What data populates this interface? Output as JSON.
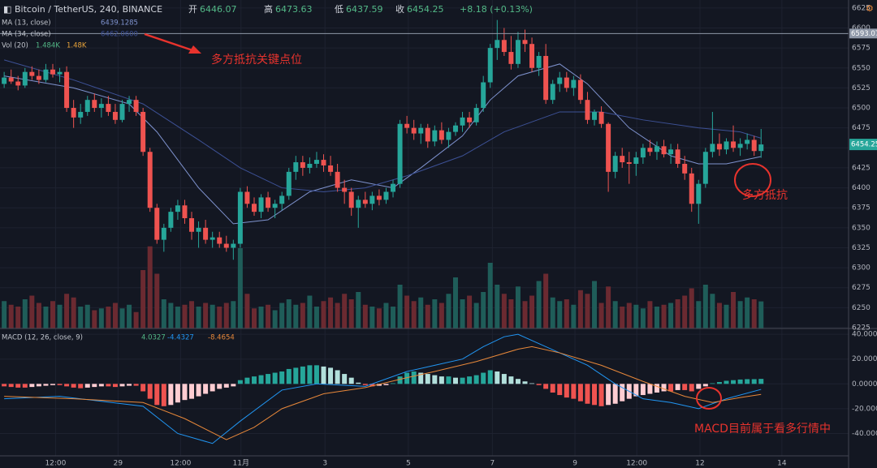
{
  "chart_data": {
    "type": "candlestick",
    "title": "Bitcoin / TetherUS, 240, BINANCE",
    "header": {
      "open": "开",
      "high": "高",
      "low": "低",
      "close": "收",
      "change": "+8.18 (+0.13%)"
    },
    "up_color": "#26a69a",
    "down_color": "#ef5350",
    "volume_up_color": "#1f5d59",
    "volume_down_color": "#6b2a31",
    "grid": true,
    "xlim": [
      -0.6,
      121.6
    ],
    "xticks": [
      {
        "value": 7.4,
        "label": "12:00"
      },
      {
        "value": 16.4,
        "label": "29"
      },
      {
        "value": 25.4,
        "label": "12:00"
      },
      {
        "value": 34.1,
        "label": "11月"
      },
      {
        "value": 46.2,
        "label": "3"
      },
      {
        "value": 58.2,
        "label": "5"
      },
      {
        "value": 70.3,
        "label": "7"
      },
      {
        "value": 82.2,
        "label": "9"
      },
      {
        "value": 91.1,
        "label": "12:00"
      },
      {
        "value": 100.2,
        "label": "12"
      },
      {
        "value": 112.0,
        "label": "14"
      }
    ],
    "ylim": [
      6224,
      6635
    ],
    "yticks": [
      6225,
      6250,
      6275,
      6300,
      6325,
      6350,
      6375,
      6400,
      6425,
      6450,
      6475,
      6500,
      6525,
      6550,
      6575,
      6600,
      6625
    ],
    "hline": {
      "value": 6593.07,
      "label": "6593.07",
      "color": "#8f98a8"
    },
    "ohlc": [
      [
        6530,
        6545,
        6525,
        6538
      ],
      [
        6538,
        6548,
        6530,
        6533
      ],
      [
        6533,
        6540,
        6522,
        6528
      ],
      [
        6528,
        6550,
        6525,
        6545
      ],
      [
        6545,
        6552,
        6535,
        6540
      ],
      [
        6540,
        6548,
        6530,
        6535
      ],
      [
        6535,
        6555,
        6532,
        6548
      ],
      [
        6548,
        6555,
        6538,
        6542
      ],
      [
        6542,
        6550,
        6532,
        6545
      ],
      [
        6545,
        6552,
        6495,
        6500
      ],
      [
        6500,
        6510,
        6475,
        6488
      ],
      [
        6488,
        6505,
        6480,
        6495
      ],
      [
        6495,
        6515,
        6490,
        6510
      ],
      [
        6510,
        6518,
        6495,
        6500
      ],
      [
        6500,
        6512,
        6488,
        6505
      ],
      [
        6505,
        6515,
        6490,
        6495
      ],
      [
        6495,
        6505,
        6480,
        6485
      ],
      [
        6485,
        6510,
        6482,
        6505
      ],
      [
        6505,
        6515,
        6495,
        6510
      ],
      [
        6510,
        6515,
        6490,
        6495
      ],
      [
        6495,
        6500,
        6440,
        6445
      ],
      [
        6445,
        6450,
        6370,
        6375
      ],
      [
        6375,
        6380,
        6330,
        6335
      ],
      [
        6335,
        6355,
        6320,
        6350
      ],
      [
        6350,
        6375,
        6345,
        6370
      ],
      [
        6370,
        6385,
        6360,
        6378
      ],
      [
        6378,
        6385,
        6355,
        6362
      ],
      [
        6362,
        6370,
        6335,
        6345
      ],
      [
        6345,
        6358,
        6325,
        6350
      ],
      [
        6350,
        6360,
        6330,
        6335
      ],
      [
        6335,
        6345,
        6325,
        6338
      ],
      [
        6338,
        6345,
        6325,
        6330
      ],
      [
        6330,
        6340,
        6320,
        6325
      ],
      [
        6325,
        6335,
        6310,
        6330
      ],
      [
        6330,
        6400,
        6325,
        6395
      ],
      [
        6395,
        6402,
        6375,
        6380
      ],
      [
        6380,
        6388,
        6365,
        6370
      ],
      [
        6370,
        6392,
        6362,
        6388
      ],
      [
        6388,
        6395,
        6370,
        6375
      ],
      [
        6375,
        6385,
        6362,
        6380
      ],
      [
        6380,
        6395,
        6372,
        6390
      ],
      [
        6390,
        6425,
        6385,
        6420
      ],
      [
        6420,
        6440,
        6410,
        6432
      ],
      [
        6432,
        6440,
        6415,
        6425
      ],
      [
        6425,
        6438,
        6418,
        6430
      ],
      [
        6430,
        6445,
        6425,
        6435
      ],
      [
        6435,
        6442,
        6420,
        6428
      ],
      [
        6428,
        6440,
        6415,
        6420
      ],
      [
        6420,
        6430,
        6395,
        6400
      ],
      [
        6400,
        6410,
        6380,
        6395
      ],
      [
        6395,
        6400,
        6365,
        6375
      ],
      [
        6375,
        6390,
        6350,
        6385
      ],
      [
        6385,
        6395,
        6375,
        6380
      ],
      [
        6380,
        6395,
        6372,
        6390
      ],
      [
        6390,
        6398,
        6378,
        6385
      ],
      [
        6385,
        6400,
        6380,
        6395
      ],
      [
        6395,
        6410,
        6388,
        6405
      ],
      [
        6405,
        6485,
        6400,
        6480
      ],
      [
        6480,
        6490,
        6468,
        6475
      ],
      [
        6475,
        6485,
        6460,
        6468
      ],
      [
        6468,
        6480,
        6455,
        6475
      ],
      [
        6475,
        6480,
        6450,
        6458
      ],
      [
        6458,
        6478,
        6452,
        6472
      ],
      [
        6472,
        6482,
        6455,
        6460
      ],
      [
        6460,
        6475,
        6450,
        6470
      ],
      [
        6470,
        6482,
        6465,
        6478
      ],
      [
        6478,
        6495,
        6470,
        6488
      ],
      [
        6488,
        6495,
        6475,
        6482
      ],
      [
        6482,
        6505,
        6478,
        6500
      ],
      [
        6500,
        6540,
        6495,
        6532
      ],
      [
        6532,
        6580,
        6525,
        6575
      ],
      [
        6575,
        6610,
        6560,
        6585
      ],
      [
        6585,
        6600,
        6565,
        6570
      ],
      [
        6570,
        6590,
        6548,
        6555
      ],
      [
        6555,
        6595,
        6550,
        6585
      ],
      [
        6585,
        6598,
        6570,
        6580
      ],
      [
        6580,
        6588,
        6545,
        6550
      ],
      [
        6550,
        6570,
        6540,
        6565
      ],
      [
        6565,
        6580,
        6505,
        6510
      ],
      [
        6510,
        6535,
        6505,
        6530
      ],
      [
        6530,
        6545,
        6520,
        6538
      ],
      [
        6538,
        6545,
        6520,
        6525
      ],
      [
        6525,
        6540,
        6515,
        6535
      ],
      [
        6535,
        6542,
        6505,
        6510
      ],
      [
        6510,
        6520,
        6480,
        6485
      ],
      [
        6485,
        6498,
        6478,
        6495
      ],
      [
        6495,
        6502,
        6475,
        6480
      ],
      [
        6480,
        6482,
        6395,
        6420
      ],
      [
        6420,
        6445,
        6412,
        6440
      ],
      [
        6440,
        6450,
        6425,
        6432
      ],
      [
        6432,
        6445,
        6405,
        6430
      ],
      [
        6430,
        6445,
        6415,
        6438
      ],
      [
        6438,
        6455,
        6430,
        6450
      ],
      [
        6450,
        6460,
        6440,
        6445
      ],
      [
        6445,
        6458,
        6435,
        6452
      ],
      [
        6452,
        6460,
        6438,
        6442
      ],
      [
        6442,
        6455,
        6430,
        6448
      ],
      [
        6448,
        6455,
        6425,
        6430
      ],
      [
        6430,
        6440,
        6410,
        6418
      ],
      [
        6418,
        6425,
        6370,
        6380
      ],
      [
        6380,
        6410,
        6355,
        6405
      ],
      [
        6405,
        6450,
        6400,
        6445
      ],
      [
        6445,
        6495,
        6438,
        6455
      ],
      [
        6455,
        6468,
        6440,
        6448
      ],
      [
        6448,
        6462,
        6442,
        6458
      ],
      [
        6458,
        6478,
        6445,
        6450
      ],
      [
        6450,
        6462,
        6440,
        6455
      ],
      [
        6455,
        6468,
        6448,
        6460
      ],
      [
        6460,
        6465,
        6440,
        6446
      ],
      [
        6446.07,
        6473.63,
        6437.59,
        6454.25
      ]
    ],
    "ma_lines": [
      {
        "name": "MA (13, close)",
        "color": "#7f93cf",
        "x": [
          0,
          10,
          18,
          22,
          28,
          33,
          38,
          44,
          50,
          56,
          60,
          66,
          70,
          74,
          80,
          84,
          90,
          96,
          100,
          104,
          109
        ],
        "values": [
          6540,
          6525,
          6505,
          6470,
          6400,
          6355,
          6360,
          6395,
          6410,
          6400,
          6425,
          6465,
          6510,
          6540,
          6555,
          6530,
          6475,
          6440,
          6430,
          6430,
          6439.1285
        ]
      },
      {
        "name": "MA (34, close)",
        "color": "#3d5196",
        "x": [
          0,
          10,
          20,
          28,
          34,
          40,
          46,
          52,
          58,
          66,
          72,
          80,
          86,
          92,
          100,
          106,
          109
        ],
        "values": [
          6560,
          6535,
          6505,
          6460,
          6425,
          6400,
          6395,
          6400,
          6415,
          6440,
          6470,
          6495,
          6495,
          6485,
          6475,
          6470,
          6462.06
        ],
        "value_label": "6462.0600"
      }
    ],
    "volume_name": "Vol (20)",
    "volume_ylim": [
      0,
      18
    ],
    "volume": [
      1.5,
      1.3,
      1.2,
      1.6,
      1.8,
      1.4,
      1.2,
      1.5,
      1.3,
      1.9,
      1.7,
      1.2,
      1.3,
      1.0,
      1.1,
      1.2,
      1.4,
      1.1,
      1.3,
      0.9,
      3.2,
      4.5,
      3.0,
      1.6,
      1.4,
      1.2,
      1.3,
      1.5,
      1.2,
      1.4,
      1.3,
      1.2,
      1.4,
      1.5,
      4.4,
      1.9,
      1.1,
      1.2,
      1.3,
      1.0,
      1.4,
      1.6,
      1.3,
      1.4,
      1.8,
      1.2,
      1.5,
      1.7,
      1.4,
      1.9,
      1.6,
      2.0,
      1.3,
      1.2,
      1.1,
      1.4,
      1.2,
      2.4,
      1.8,
      1.5,
      1.7,
      1.3,
      1.6,
      1.4,
      1.9,
      2.8,
      1.6,
      1.8,
      1.4,
      2.0,
      3.6,
      2.4,
      1.9,
      1.6,
      2.3,
      1.5,
      1.8,
      2.6,
      3.0,
      1.7,
      1.5,
      1.6,
      1.3,
      2.1,
      1.9,
      2.6,
      1.4,
      2.3,
      1.5,
      1.2,
      1.4,
      1.3,
      1.1,
      1.5,
      1.2,
      1.3,
      1.4,
      1.6,
      1.8,
      2.2,
      1.5,
      2.4,
      1.9,
      1.4,
      1.3,
      2.0,
      1.5,
      1.7,
      1.6,
      1.484
    ],
    "volume_value_label": "1.484K",
    "volume_ma": {
      "value": 1.48,
      "label": "1.48K"
    },
    "macd": {
      "name": "MACD (12, 26, close, 9)",
      "ylim": [
        -58,
        44
      ],
      "yticks": [
        {
          "value": 40,
          "label": "40.0000"
        },
        {
          "value": 20,
          "label": "20.0000"
        },
        {
          "value": 0,
          "label": "0.0000"
        },
        {
          "value": -20,
          "label": "-20.0000"
        },
        {
          "value": -40,
          "label": "-40.0000"
        }
      ],
      "hist_colors": {
        "pos_up": "#26a69a",
        "pos_down": "#b2dfdb",
        "neg_down": "#ef5350",
        "neg_up": "#ffcdd2"
      },
      "histogram": [
        -2,
        -2.5,
        -3,
        -3,
        -2.5,
        -2,
        -1.5,
        -1,
        -1,
        -2,
        -3,
        -3.5,
        -3,
        -2.5,
        -2,
        -2,
        -2.5,
        -2,
        -1.5,
        -1.5,
        -6,
        -12,
        -17,
        -18,
        -17,
        -15,
        -13,
        -12,
        -10,
        -8,
        -6,
        -4,
        -3,
        -2,
        3,
        5,
        6,
        7,
        8,
        9,
        10,
        12,
        13,
        14,
        15,
        15,
        14,
        13,
        11,
        8,
        5,
        1,
        -1,
        -2,
        -1.5,
        -1,
        0.5,
        6,
        9,
        10,
        9,
        8,
        7,
        6,
        6,
        5,
        5,
        6,
        7,
        9,
        11,
        10,
        8,
        6,
        4,
        2,
        0.5,
        -1,
        -4,
        -7,
        -9,
        -11,
        -12,
        -14,
        -16,
        -17,
        -18,
        -17,
        -16,
        -14,
        -12,
        -10,
        -9,
        -8,
        -7,
        -6,
        -6,
        -5,
        -5,
        -6,
        -4,
        -2,
        0.5,
        1.5,
        2.5,
        3,
        3.5,
        3.8,
        3.8,
        4.0327
      ],
      "lines": [
        {
          "name": "MACD",
          "color": "#2196f3",
          "x": [
            0,
            8,
            20,
            25,
            30,
            34,
            40,
            45,
            52,
            58,
            62,
            66,
            69,
            72,
            74,
            78,
            80,
            84,
            88,
            92,
            96,
            100,
            104,
            109
          ],
          "values": [
            -12,
            -10,
            -18,
            -40,
            -48,
            -30,
            -5,
            0,
            -2,
            10,
            15,
            20,
            30,
            38,
            40,
            30,
            25,
            15,
            0,
            -12,
            -15,
            -20,
            -12,
            -4.4327
          ]
        },
        {
          "name": "Signal",
          "color": "#e8883a",
          "x": [
            0,
            10,
            20,
            26,
            32,
            36,
            40,
            46,
            52,
            58,
            62,
            68,
            74,
            76,
            80,
            86,
            92,
            98,
            102,
            106,
            109
          ],
          "values": [
            -10,
            -12,
            -15,
            -28,
            -45,
            -35,
            -20,
            -8,
            -3,
            5,
            10,
            18,
            28,
            30,
            25,
            15,
            2,
            -10,
            -15,
            -11,
            -8.4654
          ]
        }
      ]
    },
    "annotations": [
      "多方抵抗关键点位",
      "多方抵抗",
      "MACD目前属于看多行情中"
    ]
  }
}
